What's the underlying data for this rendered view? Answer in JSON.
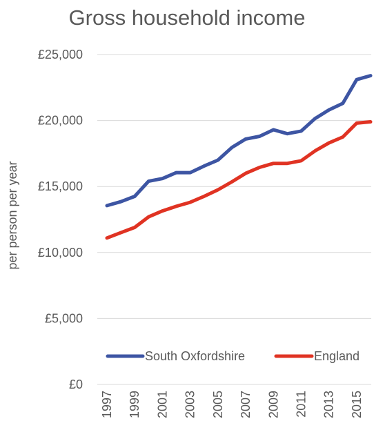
{
  "chart_data": {
    "type": "line",
    "title": "Gross household income",
    "ylabel": "per person per year",
    "xlabel": "",
    "ylim": [
      0,
      25000
    ],
    "yticks": [
      "£0",
      "£5,000",
      "£10,000",
      "£15,000",
      "£20,000",
      "£25,000"
    ],
    "ytick_values": [
      0,
      5000,
      10000,
      15000,
      20000,
      25000
    ],
    "x": [
      1997,
      1998,
      1999,
      2000,
      2001,
      2002,
      2003,
      2004,
      2005,
      2006,
      2007,
      2008,
      2009,
      2010,
      2011,
      2012,
      2013,
      2014,
      2015,
      2016
    ],
    "xtick_labels": [
      "1997",
      "1999",
      "2001",
      "2003",
      "2005",
      "2007",
      "2009",
      "2011",
      "2013",
      "2015"
    ],
    "grid": "horizontal",
    "legend": "bottom-inside",
    "series": [
      {
        "name": "South Oxfordshire",
        "color": "#3d55a3",
        "values": [
          13550,
          13850,
          14250,
          15400,
          15600,
          16050,
          16050,
          16550,
          17000,
          17950,
          18600,
          18800,
          19300,
          19000,
          19200,
          20150,
          20800,
          21300,
          23100,
          23400
        ]
      },
      {
        "name": "England",
        "color": "#e03323",
        "values": [
          11100,
          11500,
          11900,
          12700,
          13150,
          13500,
          13800,
          14250,
          14750,
          15350,
          16000,
          16450,
          16750,
          16750,
          16950,
          17700,
          18300,
          18750,
          19800,
          19900
        ]
      }
    ]
  }
}
